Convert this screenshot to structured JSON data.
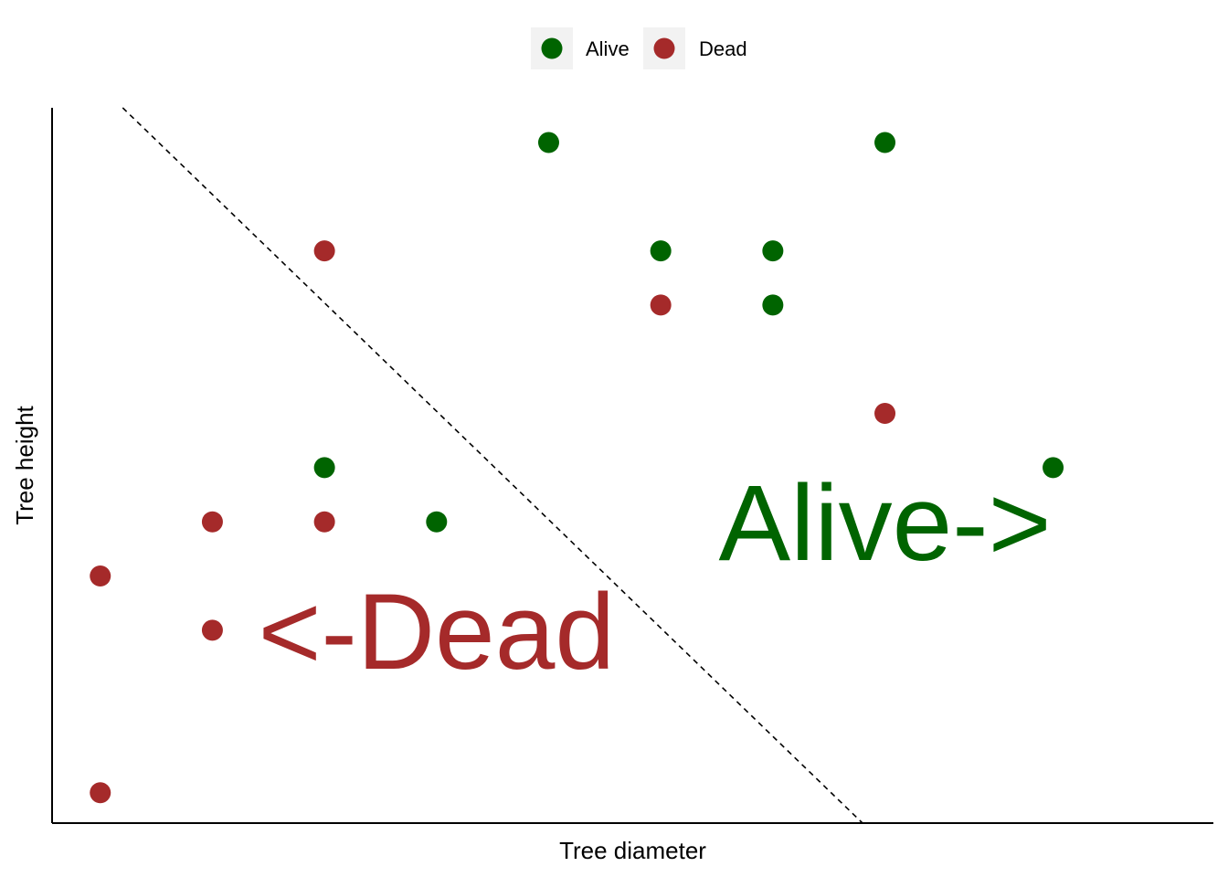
{
  "chart_data": {
    "type": "scatter",
    "title": "",
    "xlabel": "Tree diameter",
    "ylabel": "Tree height",
    "xlim": [
      0.57,
      10.93
    ],
    "ylim": [
      0.72,
      7.32
    ],
    "show_ticks": false,
    "grid": false,
    "legend_position": "top",
    "colors": {
      "Alive": "#006400",
      "Dead": "#A52A2A"
    },
    "series": [
      {
        "name": "Alive",
        "points": [
          {
            "x": 5,
            "y": 7
          },
          {
            "x": 8,
            "y": 7
          },
          {
            "x": 6,
            "y": 6
          },
          {
            "x": 7,
            "y": 6
          },
          {
            "x": 7,
            "y": 5.5
          },
          {
            "x": 3,
            "y": 4
          },
          {
            "x": 4,
            "y": 3.5
          },
          {
            "x": 9.5,
            "y": 4
          }
        ]
      },
      {
        "name": "Dead",
        "points": [
          {
            "x": 3,
            "y": 6
          },
          {
            "x": 6,
            "y": 5.5
          },
          {
            "x": 8,
            "y": 4.5
          },
          {
            "x": 2,
            "y": 3.5
          },
          {
            "x": 3,
            "y": 3.5
          },
          {
            "x": 1,
            "y": 3
          },
          {
            "x": 2,
            "y": 2.5
          },
          {
            "x": 1,
            "y": 1
          }
        ]
      }
    ],
    "boundary_line": {
      "style": "dashed",
      "points": [
        {
          "x": 1.2,
          "y": 7.32
        },
        {
          "x": 7.8,
          "y": 0.72
        }
      ]
    },
    "annotations": [
      {
        "text": "<-Dead",
        "x": 4,
        "y": 2.5,
        "color": "#A52A2A"
      },
      {
        "text": "Alive->",
        "x": 8,
        "y": 3.5,
        "color": "#006400"
      }
    ]
  }
}
